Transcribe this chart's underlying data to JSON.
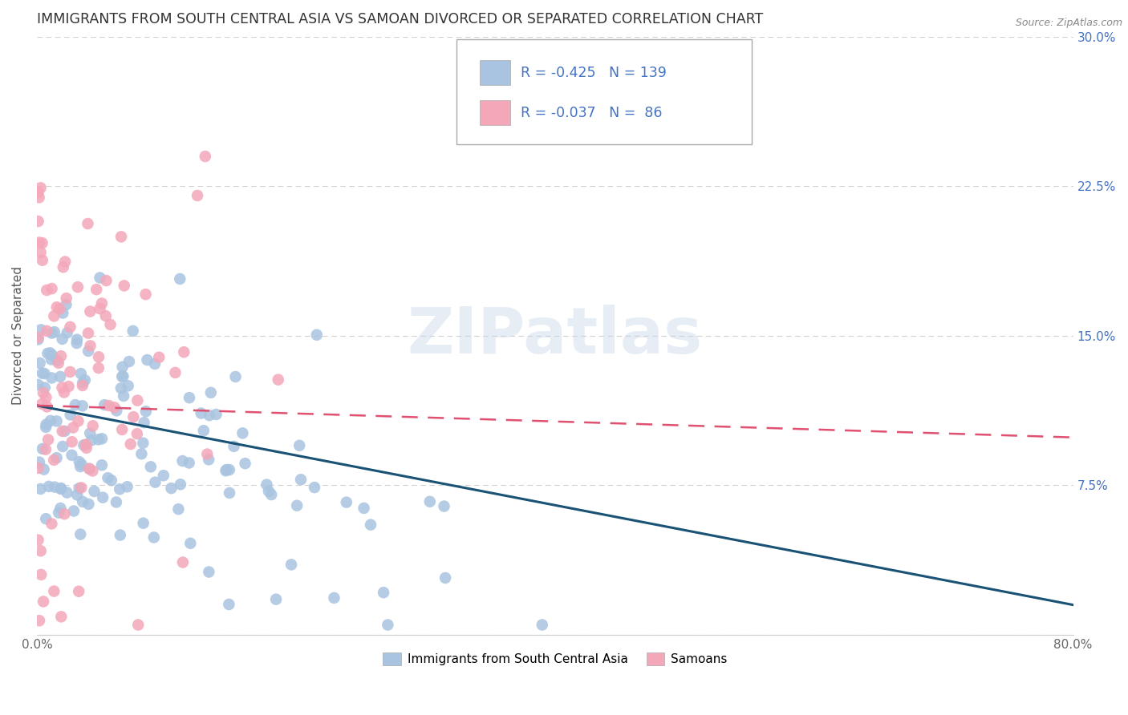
{
  "title": "IMMIGRANTS FROM SOUTH CENTRAL ASIA VS SAMOAN DIVORCED OR SEPARATED CORRELATION CHART",
  "source_text": "Source: ZipAtlas.com",
  "ylabel": "Divorced or Separated",
  "xlim": [
    0.0,
    0.8
  ],
  "ylim": [
    0.0,
    0.3
  ],
  "yticks": [
    0.0,
    0.075,
    0.15,
    0.225,
    0.3
  ],
  "ytick_labels": [
    "",
    "7.5%",
    "15.0%",
    "22.5%",
    "30.0%"
  ],
  "xticks": [
    0.0,
    0.1,
    0.2,
    0.3,
    0.4,
    0.5,
    0.6,
    0.7,
    0.8
  ],
  "xtick_labels": [
    "0.0%",
    "",
    "",
    "",
    "",
    "",
    "",
    "",
    "80.0%"
  ],
  "blue_R": -0.425,
  "blue_N": 139,
  "pink_R": -0.037,
  "pink_N": 86,
  "blue_color": "#a8c4e0",
  "pink_color": "#f4a7b9",
  "blue_line_color": "#1a5276",
  "pink_line_color": "#e05070",
  "legend_label_blue": "Immigrants from South Central Asia",
  "legend_label_pink": "Samoans",
  "watermark": "ZIPatlas",
  "watermark_color": "#c8d8e8",
  "background_color": "#ffffff",
  "title_color": "#333333",
  "axis_label_color": "#555555",
  "tick_color_right": "#4472c4",
  "tick_color_bottom": "#666666",
  "grid_color": "#cccccc",
  "seed": 42
}
